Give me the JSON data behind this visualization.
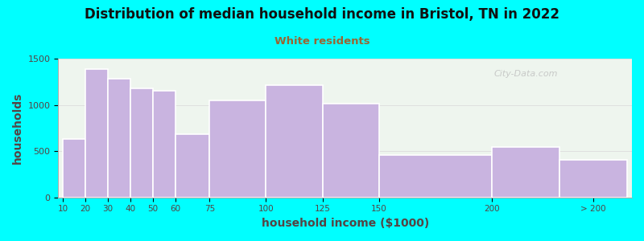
{
  "title": "Distribution of median household income in Bristol, TN in 2022",
  "subtitle": "White residents",
  "xlabel": "household income ($1000)",
  "ylabel": "households",
  "background_outer": "#00FFFF",
  "background_inner": "#eef5ee",
  "bar_color": "#C9B4E0",
  "bar_edge_color": "#ffffff",
  "title_color": "#111111",
  "subtitle_color": "#996633",
  "axis_label_color": "#554444",
  "tick_label_color": "#554444",
  "categories": [
    "10",
    "20",
    "30",
    "40",
    "50",
    "60",
    "75",
    "100",
    "125",
    "150",
    "200",
    "> 200"
  ],
  "bin_edges": [
    10,
    20,
    30,
    40,
    50,
    60,
    75,
    100,
    125,
    150,
    200,
    230,
    260
  ],
  "xtick_positions": [
    10,
    20,
    30,
    40,
    50,
    60,
    75,
    100,
    125,
    150,
    200,
    245
  ],
  "xtick_labels": [
    "10",
    "20",
    "30",
    "40",
    "50",
    "60",
    "75",
    "100",
    "125",
    "150",
    "200",
    "> 200"
  ],
  "values": [
    630,
    1390,
    1280,
    1175,
    1155,
    680,
    1045,
    1215,
    1010,
    455,
    545,
    405
  ],
  "ylim": [
    0,
    1500
  ],
  "yticks": [
    0,
    500,
    1000,
    1500
  ],
  "watermark": "City-Data.com"
}
